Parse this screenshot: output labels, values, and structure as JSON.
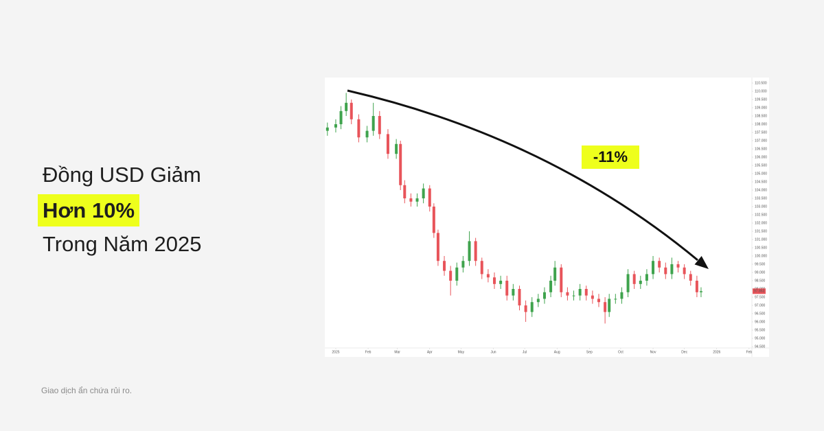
{
  "headline": {
    "line1": "Đồng USD Giảm",
    "line2": "Hơn 10%",
    "line3": "Trong Năm 2025"
  },
  "disclaimer": "Giao dịch ẩn chứa rủi ro.",
  "chart_data": {
    "type": "candlestick",
    "annotation": "-11%",
    "up_color": "#3fa34d",
    "down_color": "#e8545a",
    "last_price": 97.863,
    "x": [
      -8,
      0,
      5,
      10,
      15,
      22,
      30,
      36,
      42,
      50,
      58,
      62,
      66,
      72,
      78,
      84,
      90,
      94,
      98,
      104,
      110,
      116,
      122,
      128,
      134,
      140,
      146,
      152,
      158,
      164,
      170,
      176,
      182,
      188,
      194,
      200,
      206,
      210,
      216,
      222,
      228,
      234,
      240,
      246,
      252,
      258,
      262,
      268,
      274,
      280,
      286,
      292,
      298,
      304,
      310,
      316,
      322,
      328,
      334,
      340,
      346,
      350
    ],
    "open": [
      107.6,
      107.8,
      108.0,
      108.8,
      109.3,
      108.3,
      107.2,
      107.6,
      108.5,
      107.4,
      106.2,
      106.8,
      104.3,
      103.5,
      103.3,
      103.5,
      104.1,
      103.0,
      101.4,
      99.7,
      99.1,
      98.5,
      99.3,
      99.7,
      100.9,
      99.7,
      98.9,
      98.7,
      98.3,
      98.5,
      97.6,
      98.0,
      97.0,
      96.6,
      97.2,
      97.4,
      97.8,
      98.5,
      99.3,
      97.8,
      97.6,
      97.6,
      98.0,
      97.6,
      97.4,
      97.2,
      96.6,
      97.4,
      97.4,
      97.8,
      98.9,
      98.3,
      98.5,
      98.9,
      99.7,
      99.3,
      98.9,
      99.5,
      99.3,
      98.9,
      98.5,
      97.8
    ],
    "high": [
      108.1,
      108.3,
      109.1,
      109.9,
      109.5,
      108.6,
      107.9,
      109.3,
      108.8,
      107.7,
      107.1,
      107.0,
      104.6,
      103.8,
      103.8,
      104.4,
      104.3,
      103.2,
      101.6,
      100.0,
      99.4,
      99.6,
      100.0,
      101.5,
      101.1,
      99.9,
      99.2,
      99.0,
      98.8,
      98.8,
      98.3,
      98.2,
      97.3,
      97.5,
      97.7,
      98.1,
      98.8,
      99.7,
      99.5,
      98.1,
      97.9,
      98.3,
      98.2,
      97.9,
      97.7,
      97.5,
      97.7,
      97.7,
      98.1,
      99.2,
      99.1,
      98.8,
      99.2,
      100.0,
      99.9,
      99.6,
      99.9,
      99.7,
      99.5,
      99.1,
      98.8,
      98.1
    ],
    "low": [
      107.3,
      107.5,
      107.7,
      108.5,
      108.0,
      106.9,
      106.9,
      107.3,
      107.1,
      105.9,
      105.9,
      104.0,
      103.2,
      103.0,
      103.0,
      103.2,
      102.7,
      101.1,
      99.4,
      98.8,
      97.6,
      98.2,
      99.0,
      99.4,
      99.4,
      98.6,
      98.4,
      98.0,
      98.0,
      97.3,
      97.3,
      96.7,
      96.0,
      96.3,
      96.9,
      97.1,
      97.5,
      98.2,
      97.5,
      97.3,
      97.3,
      97.3,
      97.3,
      97.1,
      96.9,
      95.9,
      96.3,
      97.1,
      97.1,
      97.5,
      98.0,
      98.0,
      98.2,
      98.6,
      99.0,
      98.6,
      98.6,
      99.0,
      98.6,
      98.2,
      97.5,
      97.5
    ],
    "close": [
      107.8,
      108.0,
      108.8,
      109.3,
      108.3,
      107.2,
      107.6,
      108.5,
      107.4,
      106.2,
      106.8,
      104.3,
      103.5,
      103.3,
      103.5,
      104.1,
      103.0,
      101.4,
      99.7,
      99.1,
      98.5,
      99.3,
      99.7,
      100.9,
      99.7,
      98.9,
      98.7,
      98.3,
      98.5,
      97.6,
      98.0,
      97.0,
      96.6,
      97.2,
      97.4,
      97.8,
      98.5,
      99.3,
      97.8,
      97.6,
      97.6,
      98.0,
      97.6,
      97.4,
      97.2,
      96.6,
      97.4,
      97.4,
      97.8,
      98.9,
      98.3,
      98.5,
      98.9,
      99.7,
      99.3,
      98.9,
      99.5,
      99.3,
      98.9,
      98.5,
      97.8,
      97.863
    ],
    "xlim": [
      -10.5,
      398.7
    ],
    "xticks": [
      {
        "value": 0,
        "label": "2025"
      },
      {
        "value": 31,
        "label": "Feb"
      },
      {
        "value": 59,
        "label": "Mar"
      },
      {
        "value": 90,
        "label": "Apr"
      },
      {
        "value": 120,
        "label": "May"
      },
      {
        "value": 151,
        "label": "Jun"
      },
      {
        "value": 181,
        "label": "Jul"
      },
      {
        "value": 212,
        "label": "Aug"
      },
      {
        "value": 243,
        "label": "Sep"
      },
      {
        "value": 273,
        "label": "Oct"
      },
      {
        "value": 304,
        "label": "Nov"
      },
      {
        "value": 334,
        "label": "Dec"
      },
      {
        "value": 365,
        "label": "2026"
      },
      {
        "value": 396,
        "label": "Feb"
      }
    ],
    "ylim": [
      94.5,
      110.5
    ],
    "yticks": [
      {
        "value": 110.5,
        "label": "110.500"
      },
      {
        "value": 110,
        "label": "110.000"
      },
      {
        "value": 109.5,
        "label": "109.500"
      },
      {
        "value": 109,
        "label": "109.000"
      },
      {
        "value": 108.5,
        "label": "108.500"
      },
      {
        "value": 108,
        "label": "108.000"
      },
      {
        "value": 107.5,
        "label": "107.500"
      },
      {
        "value": 107,
        "label": "107.000"
      },
      {
        "value": 106.5,
        "label": "106.500"
      },
      {
        "value": 106,
        "label": "106.000"
      },
      {
        "value": 105.5,
        "label": "105.500"
      },
      {
        "value": 105,
        "label": "105.000"
      },
      {
        "value": 104.5,
        "label": "104.500"
      },
      {
        "value": 104,
        "label": "104.000"
      },
      {
        "value": 103.5,
        "label": "103.500"
      },
      {
        "value": 103,
        "label": "103.000"
      },
      {
        "value": 102.5,
        "label": "102.500"
      },
      {
        "value": 102,
        "label": "102.000"
      },
      {
        "value": 101.5,
        "label": "101.500"
      },
      {
        "value": 101,
        "label": "101.000"
      },
      {
        "value": 100.5,
        "label": "100.500"
      },
      {
        "value": 100,
        "label": "100.000"
      },
      {
        "value": 99.5,
        "label": "99.500"
      },
      {
        "value": 99,
        "label": "99.000"
      },
      {
        "value": 98.5,
        "label": "98.500"
      },
      {
        "value": 98,
        "label": "98.000"
      },
      {
        "value": 97.5,
        "label": "97.500"
      },
      {
        "value": 97,
        "label": "97.000"
      },
      {
        "value": 96.5,
        "label": "96.500"
      },
      {
        "value": 96,
        "label": "96.000"
      },
      {
        "value": 95.5,
        "label": "95.500"
      },
      {
        "value": 95,
        "label": "95.000"
      },
      {
        "value": 94.5,
        "label": "94.500"
      }
    ]
  }
}
